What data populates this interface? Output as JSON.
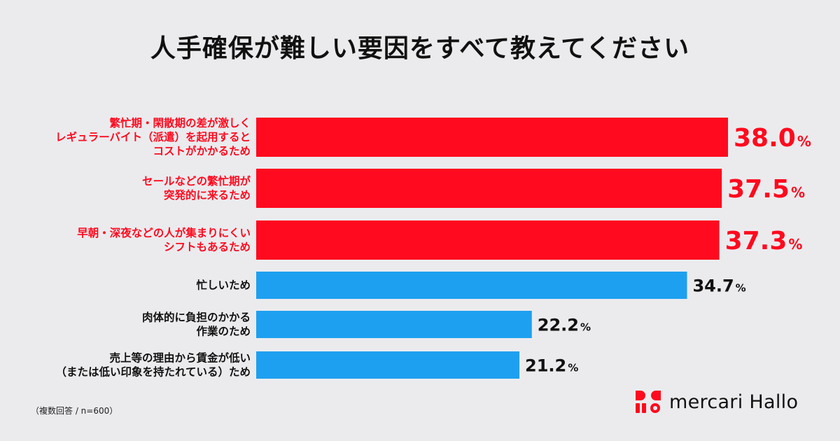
{
  "colors": {
    "highlight": "#ff0a1e",
    "normal": "#1ea0f0",
    "label_normal": "#111111",
    "background": "#ebebee"
  },
  "note": "（複数回答 / n=600）",
  "logo": {
    "text": "mercari Hallo",
    "icon": "mercari-hallo-logo-mark"
  },
  "chart_data": {
    "type": "bar",
    "orientation": "horizontal",
    "title": "人手確保が難しい要因をすべて教えてください",
    "unit": "%",
    "xlim": [
      0,
      38.0
    ],
    "grid": false,
    "legend": "none",
    "categories": [
      [
        "繁忙期・閑散期の差が激しく",
        "レギュラーバイト（派遣）を起用すると",
        "コストがかかるため"
      ],
      [
        "セールなどの繁忙期が",
        "突発的に来るため"
      ],
      [
        "早朝・深夜などの人が集まりにくい",
        "シフトもあるため"
      ],
      [
        "忙しいため"
      ],
      [
        "肉体的に負担のかかる",
        "作業のため"
      ],
      [
        "売上等の理由から賃金が低い",
        "（または低い印象を持たれている）ため"
      ]
    ],
    "values": [
      38.0,
      37.5,
      37.3,
      34.7,
      22.2,
      21.2
    ],
    "value_labels": [
      "38.0",
      "37.5",
      "37.3",
      "34.7",
      "22.2",
      "21.2"
    ],
    "highlighted": [
      true,
      true,
      true,
      false,
      false,
      false
    ]
  }
}
